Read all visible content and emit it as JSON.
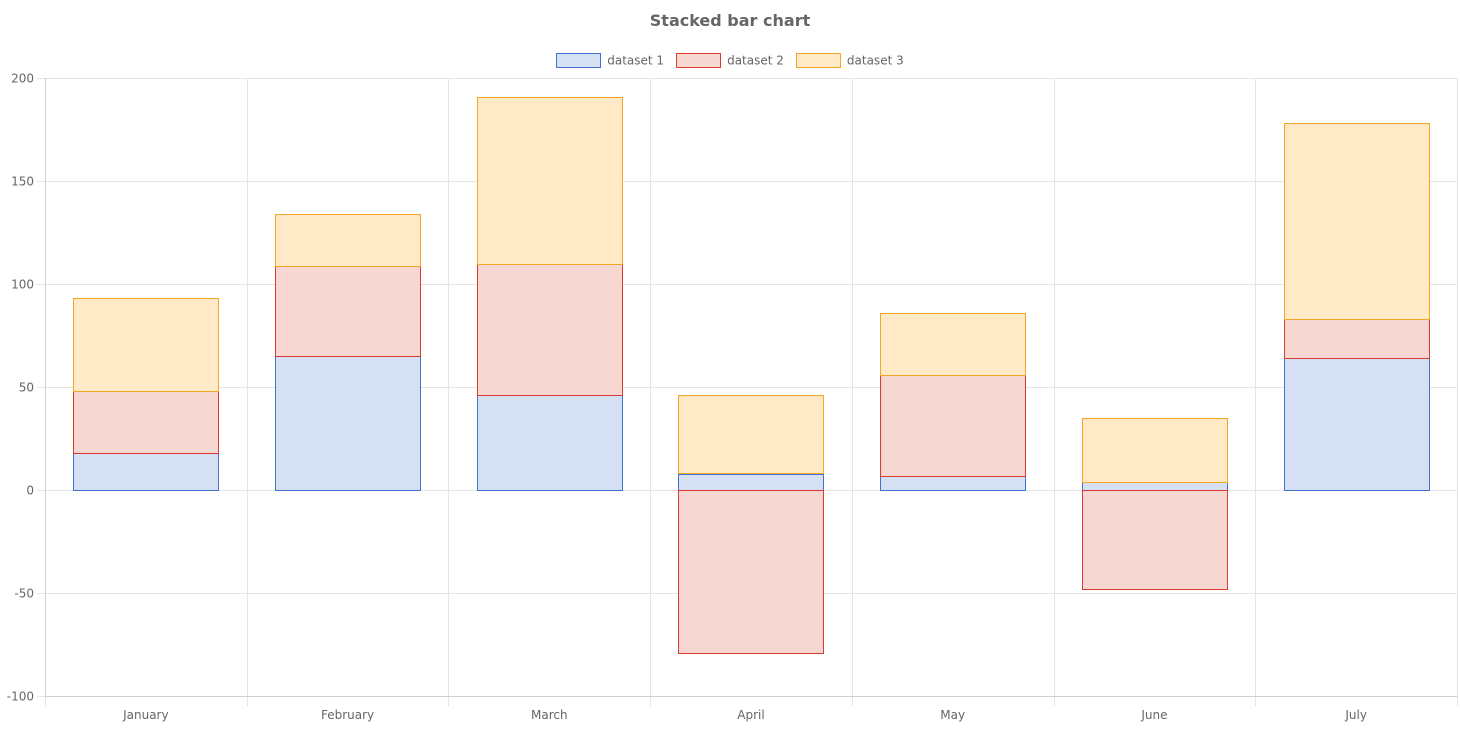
{
  "chart_data": {
    "type": "bar",
    "stacked": true,
    "title": "Stacked bar chart",
    "categories": [
      "January",
      "February",
      "March",
      "April",
      "May",
      "June",
      "July"
    ],
    "series": [
      {
        "name": "dataset 1",
        "values": [
          18,
          65,
          46,
          8,
          7,
          4,
          64
        ],
        "fill": "#d5e0f3",
        "stroke": "#3f73cf"
      },
      {
        "name": "dataset 2",
        "values": [
          30,
          44,
          64,
          -79,
          49,
          -48,
          19
        ],
        "fill": "#f7d7d2",
        "stroke": "#db3b2e"
      },
      {
        "name": "dataset 3",
        "values": [
          45,
          25,
          81,
          38,
          30,
          31,
          95
        ],
        "fill": "#ffe9c7",
        "stroke": "#f5a623"
      }
    ],
    "ylim": [
      -100,
      200
    ],
    "yticks": [
      "200",
      "150",
      "100",
      "50",
      "0",
      "-50",
      "-100"
    ],
    "grid": true,
    "legend_position": "top"
  }
}
